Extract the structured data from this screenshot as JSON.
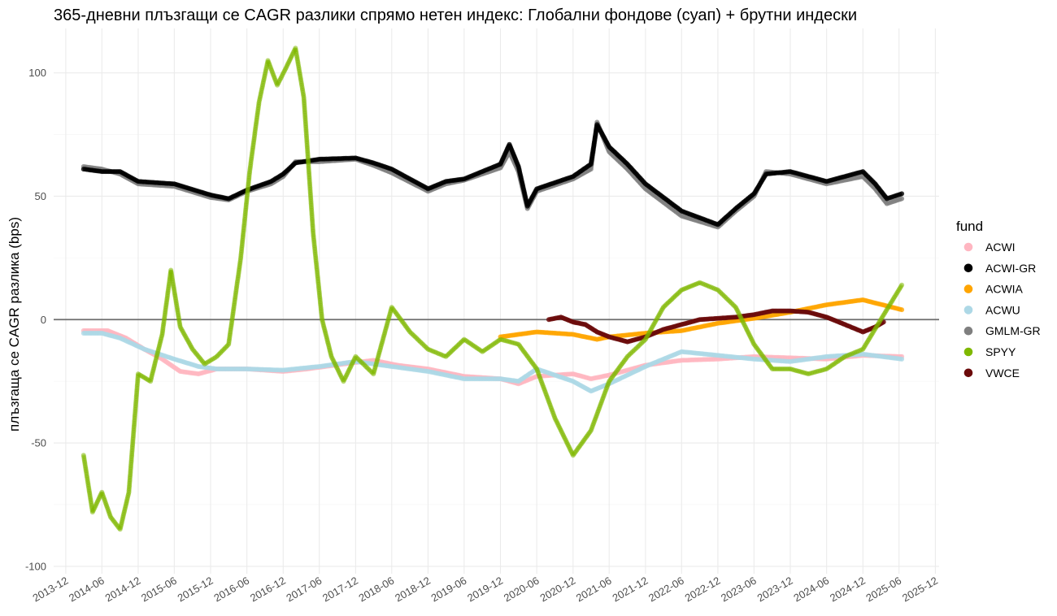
{
  "chart_data": {
    "type": "scatter",
    "title": "365-дневни плъзгащи се CAGR разлики спрямо нетен индекс: Глобални фондове (суап) + брутни индески",
    "xlabel": "",
    "ylabel": "плъзгаща се CAGR разлика (bps)",
    "x_type": "date",
    "xlim": [
      "2013-10-01",
      "2025-12-20"
    ],
    "ylim": [
      -103,
      118
    ],
    "x_ticks": [
      "2013-12",
      "2014-06",
      "2014-12",
      "2015-06",
      "2015-12",
      "2016-06",
      "2016-12",
      "2017-06",
      "2017-12",
      "2018-06",
      "2018-12",
      "2019-06",
      "2019-12",
      "2020-06",
      "2020-12",
      "2021-06",
      "2021-12",
      "2022-06",
      "2022-12",
      "2023-06",
      "2023-12",
      "2024-06",
      "2024-12",
      "2025-06",
      "2025-12"
    ],
    "y_ticks": [
      -100,
      -50,
      0,
      50,
      100
    ],
    "reference_line": {
      "y": 0,
      "color": "#6e6e6e"
    },
    "grid": true,
    "legend": {
      "title": "fund",
      "position": "right"
    },
    "series": [
      {
        "name": "ACWI",
        "color": "#ffb6c1",
        "points": [
          [
            "2014-03-01",
            -4.5
          ],
          [
            "2014-07-01",
            -4.5
          ],
          [
            "2014-10-01",
            -7.5
          ],
          [
            "2015-01-01",
            -12
          ],
          [
            "2015-04-01",
            -16
          ],
          [
            "2015-07-01",
            -21
          ],
          [
            "2015-10-01",
            -22
          ],
          [
            "2016-01-01",
            -20
          ],
          [
            "2016-06-01",
            -20
          ],
          [
            "2016-12-01",
            -21
          ],
          [
            "2017-04-01",
            -20
          ],
          [
            "2017-10-01",
            -18
          ],
          [
            "2018-03-01",
            -16.5
          ],
          [
            "2018-07-01",
            -18.5
          ],
          [
            "2018-12-01",
            -20
          ],
          [
            "2019-06-01",
            -23
          ],
          [
            "2019-12-01",
            -24
          ],
          [
            "2020-03-01",
            -26
          ],
          [
            "2020-06-01",
            -23
          ],
          [
            "2020-12-01",
            -22
          ],
          [
            "2021-03-01",
            -24
          ],
          [
            "2021-06-01",
            -22.5
          ],
          [
            "2021-12-01",
            -18.5
          ],
          [
            "2022-06-01",
            -16.5
          ],
          [
            "2022-12-01",
            -16
          ],
          [
            "2023-06-01",
            -15
          ],
          [
            "2023-12-01",
            -15.5
          ],
          [
            "2024-06-01",
            -16
          ],
          [
            "2024-12-01",
            -14.5
          ],
          [
            "2025-06-15",
            -15
          ]
        ]
      },
      {
        "name": "ACWI-GR",
        "color": "#000000",
        "points": [
          [
            "2014-03-01",
            61
          ],
          [
            "2014-06-01",
            60
          ],
          [
            "2014-09-01",
            60
          ],
          [
            "2014-12-01",
            56
          ],
          [
            "2015-06-01",
            55
          ],
          [
            "2015-12-01",
            50.5
          ],
          [
            "2016-03-01",
            49
          ],
          [
            "2016-06-01",
            52.5
          ],
          [
            "2016-10-01",
            56
          ],
          [
            "2016-12-01",
            59
          ],
          [
            "2017-02-01",
            63.5
          ],
          [
            "2017-06-01",
            65
          ],
          [
            "2017-12-01",
            65.5
          ],
          [
            "2018-03-01",
            63.5
          ],
          [
            "2018-06-01",
            61
          ],
          [
            "2018-12-01",
            53
          ],
          [
            "2019-03-01",
            56
          ],
          [
            "2019-06-01",
            57
          ],
          [
            "2019-12-01",
            63
          ],
          [
            "2020-01-15",
            71
          ],
          [
            "2020-03-01",
            62
          ],
          [
            "2020-04-15",
            46
          ],
          [
            "2020-06-01",
            53
          ],
          [
            "2020-12-01",
            58
          ],
          [
            "2021-03-01",
            63
          ],
          [
            "2021-04-01",
            79
          ],
          [
            "2021-06-01",
            70
          ],
          [
            "2021-09-01",
            63
          ],
          [
            "2021-12-01",
            55
          ],
          [
            "2022-06-01",
            44
          ],
          [
            "2022-12-01",
            38.5
          ],
          [
            "2023-03-01",
            45
          ],
          [
            "2023-06-01",
            51
          ],
          [
            "2023-08-01",
            59
          ],
          [
            "2023-12-01",
            60
          ],
          [
            "2024-06-01",
            56
          ],
          [
            "2024-12-01",
            60
          ],
          [
            "2025-02-01",
            55
          ],
          [
            "2025-04-01",
            49
          ],
          [
            "2025-06-15",
            51
          ]
        ]
      },
      {
        "name": "ACWIA",
        "color": "#ffa500",
        "points": [
          [
            "2019-12-01",
            -7
          ],
          [
            "2020-06-01",
            -5
          ],
          [
            "2020-12-01",
            -6
          ],
          [
            "2021-04-01",
            -8
          ],
          [
            "2021-06-01",
            -7
          ],
          [
            "2021-12-01",
            -5.5
          ],
          [
            "2022-06-01",
            -4.5
          ],
          [
            "2022-12-01",
            -1.5
          ],
          [
            "2023-06-01",
            0.5
          ],
          [
            "2023-12-01",
            3
          ],
          [
            "2024-06-01",
            6
          ],
          [
            "2024-12-01",
            8
          ],
          [
            "2025-06-15",
            4
          ]
        ]
      },
      {
        "name": "ACWU",
        "color": "#add8e6",
        "points": [
          [
            "2014-03-01",
            -5.5
          ],
          [
            "2014-06-01",
            -5.5
          ],
          [
            "2014-09-01",
            -7.5
          ],
          [
            "2015-01-01",
            -12
          ],
          [
            "2015-06-01",
            -16
          ],
          [
            "2015-10-01",
            -19
          ],
          [
            "2016-01-01",
            -20
          ],
          [
            "2016-06-01",
            -20
          ],
          [
            "2016-12-01",
            -20.5
          ],
          [
            "2017-06-01",
            -19
          ],
          [
            "2017-12-01",
            -17
          ],
          [
            "2018-06-01",
            -19
          ],
          [
            "2018-12-01",
            -21
          ],
          [
            "2019-06-01",
            -24
          ],
          [
            "2019-12-01",
            -24
          ],
          [
            "2020-03-01",
            -25
          ],
          [
            "2020-06-01",
            -20
          ],
          [
            "2020-12-01",
            -25
          ],
          [
            "2021-03-01",
            -29
          ],
          [
            "2021-06-01",
            -26
          ],
          [
            "2021-12-01",
            -19
          ],
          [
            "2022-06-01",
            -13
          ],
          [
            "2022-12-01",
            -14.5
          ],
          [
            "2023-06-01",
            -16
          ],
          [
            "2023-12-01",
            -17
          ],
          [
            "2024-06-01",
            -15
          ],
          [
            "2024-12-01",
            -14
          ],
          [
            "2025-06-15",
            -16
          ]
        ]
      },
      {
        "name": "GMLM-GR",
        "color": "#7f7f7f",
        "points": [
          [
            "2014-03-01",
            62
          ],
          [
            "2014-06-01",
            61
          ],
          [
            "2014-09-01",
            59
          ],
          [
            "2014-12-01",
            55
          ],
          [
            "2015-06-01",
            54
          ],
          [
            "2015-12-01",
            49.5
          ],
          [
            "2016-03-01",
            48.5
          ],
          [
            "2016-06-01",
            52
          ],
          [
            "2016-10-01",
            55
          ],
          [
            "2016-12-01",
            58
          ],
          [
            "2017-02-01",
            64
          ],
          [
            "2017-06-01",
            64
          ],
          [
            "2017-12-01",
            65
          ],
          [
            "2018-03-01",
            62.5
          ],
          [
            "2018-06-01",
            59.5
          ],
          [
            "2018-12-01",
            52
          ],
          [
            "2019-03-01",
            55
          ],
          [
            "2019-06-01",
            56.5
          ],
          [
            "2019-12-01",
            61.5
          ],
          [
            "2020-01-15",
            68
          ],
          [
            "2020-03-01",
            60
          ],
          [
            "2020-04-15",
            45
          ],
          [
            "2020-06-01",
            52
          ],
          [
            "2020-12-01",
            57
          ],
          [
            "2021-03-01",
            61
          ],
          [
            "2021-04-01",
            80
          ],
          [
            "2021-06-01",
            68
          ],
          [
            "2021-09-01",
            61
          ],
          [
            "2021-12-01",
            53
          ],
          [
            "2022-06-01",
            42
          ],
          [
            "2022-12-01",
            37.5
          ],
          [
            "2023-03-01",
            44
          ],
          [
            "2023-06-01",
            50
          ],
          [
            "2023-08-01",
            60
          ],
          [
            "2023-12-01",
            59
          ],
          [
            "2024-06-01",
            55
          ],
          [
            "2024-12-01",
            58
          ],
          [
            "2025-02-01",
            53
          ],
          [
            "2025-04-01",
            47
          ],
          [
            "2025-06-15",
            49
          ]
        ]
      },
      {
        "name": "SPYY",
        "color": "#7fb800",
        "points": [
          [
            "2014-03-01",
            -55
          ],
          [
            "2014-04-15",
            -78
          ],
          [
            "2014-06-01",
            -70
          ],
          [
            "2014-07-15",
            -80
          ],
          [
            "2014-09-01",
            -85
          ],
          [
            "2014-10-15",
            -70
          ],
          [
            "2014-12-01",
            -22
          ],
          [
            "2015-02-01",
            -25
          ],
          [
            "2015-04-01",
            -6
          ],
          [
            "2015-05-15",
            20
          ],
          [
            "2015-07-01",
            -3
          ],
          [
            "2015-09-01",
            -12
          ],
          [
            "2015-11-01",
            -18
          ],
          [
            "2016-01-01",
            -15
          ],
          [
            "2016-03-01",
            -10
          ],
          [
            "2016-05-01",
            25
          ],
          [
            "2016-06-15",
            60
          ],
          [
            "2016-08-01",
            88
          ],
          [
            "2016-09-15",
            105
          ],
          [
            "2016-11-01",
            95
          ],
          [
            "2016-12-15",
            102
          ],
          [
            "2017-02-01",
            110
          ],
          [
            "2017-03-15",
            90
          ],
          [
            "2017-05-01",
            35
          ],
          [
            "2017-06-15",
            0
          ],
          [
            "2017-08-01",
            -15
          ],
          [
            "2017-10-01",
            -25
          ],
          [
            "2017-12-01",
            -15
          ],
          [
            "2018-03-01",
            -22
          ],
          [
            "2018-06-01",
            5
          ],
          [
            "2018-09-01",
            -5
          ],
          [
            "2018-12-01",
            -12
          ],
          [
            "2019-03-01",
            -15
          ],
          [
            "2019-06-01",
            -8
          ],
          [
            "2019-09-01",
            -13
          ],
          [
            "2019-12-01",
            -8
          ],
          [
            "2020-03-01",
            -10
          ],
          [
            "2020-06-01",
            -20
          ],
          [
            "2020-09-01",
            -40
          ],
          [
            "2020-12-01",
            -55
          ],
          [
            "2021-03-01",
            -45
          ],
          [
            "2021-06-01",
            -25
          ],
          [
            "2021-09-01",
            -15
          ],
          [
            "2021-12-01",
            -8
          ],
          [
            "2022-03-01",
            5
          ],
          [
            "2022-06-01",
            12
          ],
          [
            "2022-09-01",
            15
          ],
          [
            "2022-12-01",
            12
          ],
          [
            "2023-03-01",
            5
          ],
          [
            "2023-06-01",
            -10
          ],
          [
            "2023-09-01",
            -20
          ],
          [
            "2023-12-01",
            -20
          ],
          [
            "2024-03-01",
            -22
          ],
          [
            "2024-06-01",
            -20
          ],
          [
            "2024-09-01",
            -15
          ],
          [
            "2024-12-01",
            -12
          ],
          [
            "2025-03-01",
            0
          ],
          [
            "2025-06-15",
            14
          ]
        ]
      },
      {
        "name": "VWCE",
        "color": "#6b0a0a",
        "points": [
          [
            "2020-08-01",
            0
          ],
          [
            "2020-10-01",
            1
          ],
          [
            "2020-12-01",
            -1
          ],
          [
            "2021-02-01",
            -2
          ],
          [
            "2021-04-01",
            -5
          ],
          [
            "2021-06-01",
            -7
          ],
          [
            "2021-09-01",
            -9
          ],
          [
            "2021-12-01",
            -7
          ],
          [
            "2022-03-01",
            -4
          ],
          [
            "2022-06-01",
            -2
          ],
          [
            "2022-09-01",
            0
          ],
          [
            "2022-12-01",
            0.5
          ],
          [
            "2023-03-01",
            1
          ],
          [
            "2023-06-01",
            2
          ],
          [
            "2023-09-01",
            3.5
          ],
          [
            "2023-12-01",
            3.5
          ],
          [
            "2024-03-01",
            3
          ],
          [
            "2024-06-01",
            1
          ],
          [
            "2024-09-01",
            -2
          ],
          [
            "2024-12-01",
            -5
          ],
          [
            "2025-02-01",
            -3
          ],
          [
            "2025-03-15",
            -1
          ]
        ]
      }
    ]
  }
}
